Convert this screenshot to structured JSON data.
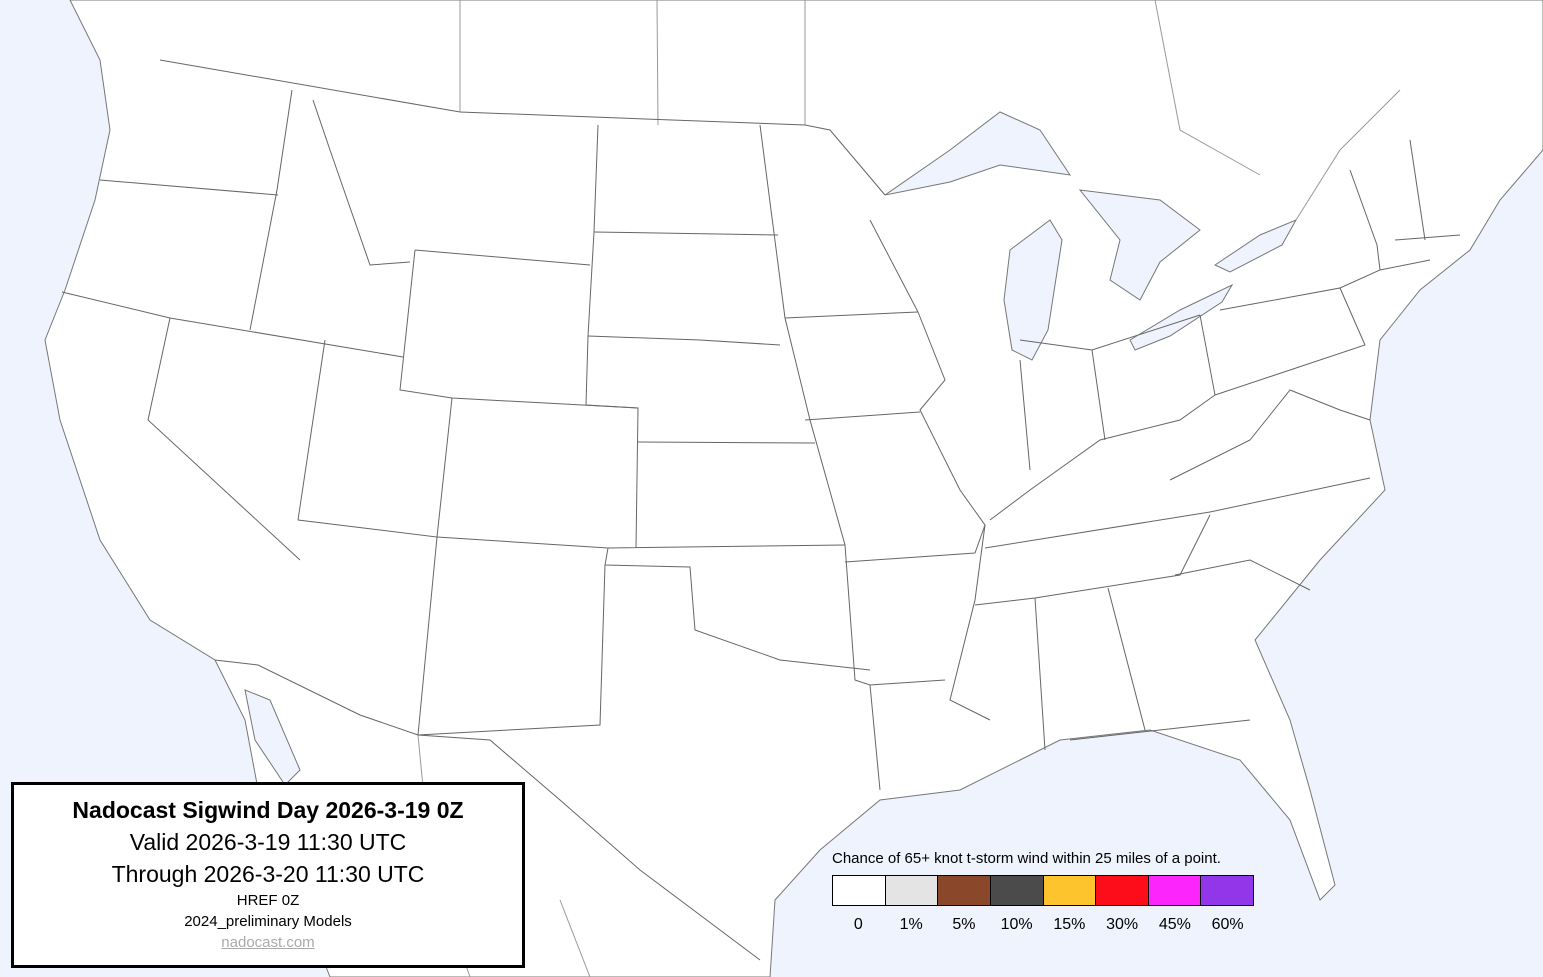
{
  "title_box": {
    "title": "Nadocast Sigwind Day 2026-3-19 0Z",
    "valid": "Valid 2026-3-19 11:30 UTC",
    "through": "Through 2026-3-20 11:30 UTC",
    "model": "HREF 0Z",
    "models": "2024_preliminary Models",
    "link": "nadocast.com"
  },
  "legend": {
    "title": "Chance of 65+ knot t-storm wind within 25 miles of a point.",
    "items": [
      {
        "label": "0",
        "color": "#ffffff"
      },
      {
        "label": "1%",
        "color": "#e4e4e4"
      },
      {
        "label": "5%",
        "color": "#8b4729"
      },
      {
        "label": "10%",
        "color": "#4b4b4b"
      },
      {
        "label": "15%",
        "color": "#fec42e"
      },
      {
        "label": "30%",
        "color": "#fd0d1a"
      },
      {
        "label": "45%",
        "color": "#fc26fc"
      },
      {
        "label": "60%",
        "color": "#9137e9"
      }
    ]
  },
  "map": {
    "water_color": "#eef3fd",
    "land_color": "#ffffff",
    "forecast_area": "none above 0"
  }
}
